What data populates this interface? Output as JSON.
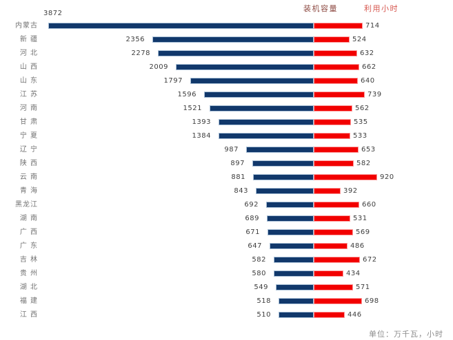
{
  "header": {
    "capacity_label": "装机容量",
    "hours_label": "利用小时"
  },
  "footer": {
    "unit_note": "单位：万千瓦，小时"
  },
  "colors": {
    "capacity_bar": "#11386B",
    "capacity_bar_border": "#A8BFD6",
    "hours_bar": "#F20000",
    "hours_bar_border": "#FC9C9C",
    "capacity_header": "#8D4A42",
    "hours_header": "#D6564E",
    "province_label": "#737373",
    "value_label": "#3D3D3D",
    "unit_note": "#8C8C8C"
  },
  "chart_data": {
    "type": "bar",
    "variant": "diverging-horizontal",
    "title": "",
    "unit_note": "单位：万千瓦，小时",
    "legend_position": "top",
    "grid": false,
    "categories": [
      "内蒙古",
      "新 疆",
      "河 北",
      "山 西",
      "山 东",
      "江 苏",
      "河 南",
      "甘 肃",
      "宁 夏",
      "辽 宁",
      "陕 西",
      "云 南",
      "青 海",
      "黑龙江",
      "湖 南",
      "广 西",
      "广 东",
      "吉 林",
      "贵 州",
      "湖 北",
      "福 建",
      "江 西"
    ],
    "series": [
      {
        "name": "装机容量",
        "direction": "left",
        "color": "#11386B",
        "values": [
          3872,
          2356,
          2278,
          2009,
          1797,
          1596,
          1521,
          1393,
          1384,
          987,
          897,
          881,
          843,
          692,
          689,
          671,
          647,
          582,
          580,
          549,
          518,
          510
        ]
      },
      {
        "name": "利用小时",
        "direction": "right",
        "color": "#F20000",
        "values": [
          714,
          524,
          632,
          662,
          640,
          739,
          562,
          535,
          533,
          653,
          582,
          920,
          392,
          660,
          531,
          569,
          486,
          672,
          434,
          571,
          698,
          446
        ]
      }
    ]
  }
}
